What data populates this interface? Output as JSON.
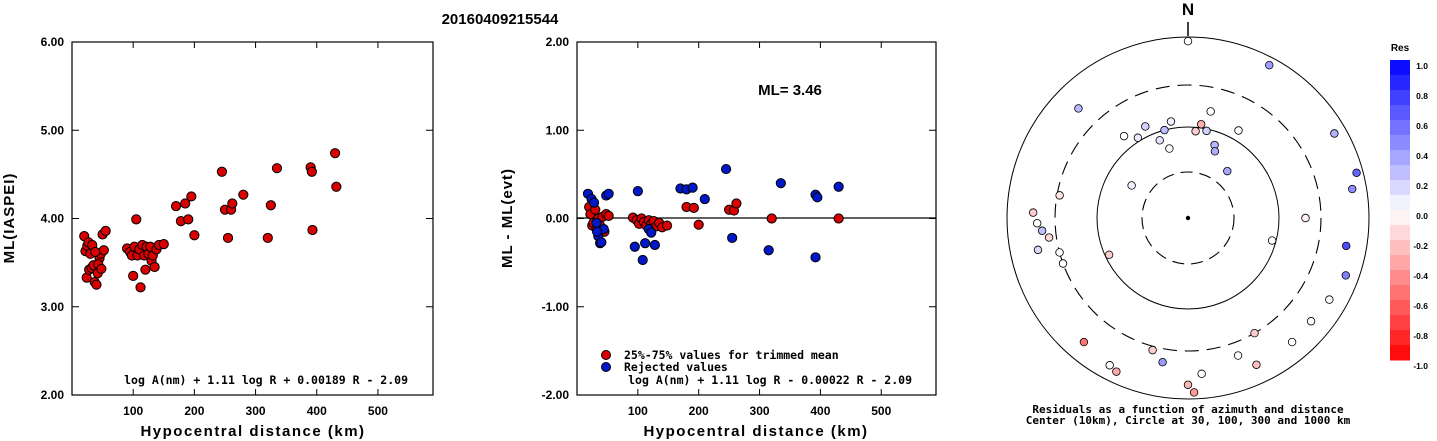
{
  "figure_title": "20160409215544",
  "chart_data": [
    {
      "type": "scatter",
      "name": "left",
      "ylabel": "ML(IASPEI)",
      "xlabel": "Hypocentral distance (km)",
      "xlim": [
        0,
        590
      ],
      "ylim": [
        2.0,
        6.0
      ],
      "x_ticks": [
        "100",
        "200",
        "300",
        "400",
        "500"
      ],
      "y_ticks": [
        "2.00",
        "3.00",
        "4.00",
        "5.00",
        "6.00"
      ],
      "formula": "log A(nm) + 1.11 log R + 0.00189 R - 2.09",
      "color": "#d80000",
      "points": [
        [
          20,
          3.8
        ],
        [
          22,
          3.63
        ],
        [
          25,
          3.69
        ],
        [
          27,
          3.73
        ],
        [
          30,
          3.6
        ],
        [
          24,
          3.33
        ],
        [
          28,
          3.42
        ],
        [
          32,
          3.44
        ],
        [
          35,
          3.47
        ],
        [
          37,
          3.28
        ],
        [
          40,
          3.25
        ],
        [
          42,
          3.38
        ],
        [
          45,
          3.55
        ],
        [
          47,
          3.6
        ],
        [
          50,
          3.82
        ],
        [
          52,
          3.64
        ],
        [
          55,
          3.86
        ],
        [
          33,
          3.7
        ],
        [
          38,
          3.62
        ],
        [
          43,
          3.48
        ],
        [
          48,
          3.43
        ],
        [
          90,
          3.66
        ],
        [
          95,
          3.62
        ],
        [
          98,
          3.58
        ],
        [
          100,
          3.35
        ],
        [
          102,
          3.68
        ],
        [
          105,
          3.99
        ],
        [
          107,
          3.58
        ],
        [
          110,
          3.65
        ],
        [
          112,
          3.22
        ],
        [
          115,
          3.7
        ],
        [
          118,
          3.58
        ],
        [
          120,
          3.42
        ],
        [
          122,
          3.68
        ],
        [
          125,
          3.6
        ],
        [
          128,
          3.68
        ],
        [
          130,
          3.52
        ],
        [
          132,
          3.58
        ],
        [
          135,
          3.45
        ],
        [
          138,
          3.65
        ],
        [
          142,
          3.7
        ],
        [
          150,
          3.71
        ],
        [
          170,
          4.14
        ],
        [
          178,
          3.97
        ],
        [
          185,
          4.17
        ],
        [
          190,
          3.99
        ],
        [
          195,
          4.25
        ],
        [
          200,
          3.81
        ],
        [
          245,
          4.53
        ],
        [
          250,
          4.1
        ],
        [
          255,
          3.78
        ],
        [
          260,
          4.1
        ],
        [
          262,
          4.17
        ],
        [
          280,
          4.27
        ],
        [
          320,
          3.78
        ],
        [
          325,
          4.15
        ],
        [
          335,
          4.57
        ],
        [
          390,
          4.58
        ],
        [
          392,
          4.53
        ],
        [
          393,
          3.87
        ],
        [
          430,
          4.74
        ],
        [
          432,
          4.36
        ]
      ]
    },
    {
      "type": "scatter",
      "name": "middle",
      "ylabel": "ML - ML(evt)",
      "xlabel": "Hypocentral distance (km)",
      "xlim": [
        0,
        590
      ],
      "ylim": [
        -2.0,
        2.0
      ],
      "x_ticks": [
        "100",
        "200",
        "300",
        "400",
        "500"
      ],
      "y_ticks": [
        "-2.00",
        "-1.00",
        "0.00",
        "1.00",
        "2.00"
      ],
      "formula": "log A(nm) + 1.11 log R - 0.00022 R - 2.09",
      "ml_label": "ML= 3.46",
      "legend": [
        "25%-75% values for trimmed mean",
        "Rejected values"
      ],
      "legend_colors": [
        "#d80000",
        "#0018c8"
      ],
      "series": [
        {
          "name": "25%-75% values for trimmed mean",
          "color": "#d80000",
          "points": [
            [
              20,
              0.13
            ],
            [
              22,
              0.05
            ],
            [
              25,
              -0.08
            ],
            [
              27,
              -0.05
            ],
            [
              30,
              0.1
            ],
            [
              32,
              -0.12
            ],
            [
              35,
              0.0
            ],
            [
              38,
              -0.08
            ],
            [
              42,
              0.02
            ],
            [
              45,
              -0.15
            ],
            [
              48,
              0.05
            ],
            [
              52,
              0.03
            ],
            [
              92,
              0.01
            ],
            [
              98,
              -0.02
            ],
            [
              102,
              -0.06
            ],
            [
              106,
              0.0
            ],
            [
              110,
              -0.04
            ],
            [
              114,
              -0.08
            ],
            [
              118,
              -0.02
            ],
            [
              122,
              -0.06
            ],
            [
              126,
              -0.03
            ],
            [
              130,
              -0.09
            ],
            [
              135,
              -0.05
            ],
            [
              140,
              -0.1
            ],
            [
              148,
              -0.08
            ],
            [
              180,
              0.13
            ],
            [
              192,
              0.12
            ],
            [
              200,
              -0.07
            ],
            [
              250,
              0.1
            ],
            [
              258,
              0.09
            ],
            [
              262,
              0.17
            ],
            [
              320,
              0.0
            ],
            [
              430,
              0.0
            ]
          ]
        },
        {
          "name": "Rejected values",
          "color": "#0018c8",
          "points": [
            [
              18,
              0.28
            ],
            [
              24,
              0.22
            ],
            [
              28,
              0.18
            ],
            [
              32,
              -0.05
            ],
            [
              35,
              -0.2
            ],
            [
              38,
              -0.28
            ],
            [
              40,
              -0.27
            ],
            [
              44,
              -0.12
            ],
            [
              48,
              0.26
            ],
            [
              52,
              0.28
            ],
            [
              33,
              -0.15
            ],
            [
              95,
              -0.32
            ],
            [
              100,
              0.31
            ],
            [
              108,
              -0.47
            ],
            [
              112,
              -0.28
            ],
            [
              118,
              -0.12
            ],
            [
              122,
              -0.16
            ],
            [
              128,
              -0.3
            ],
            [
              170,
              0.34
            ],
            [
              180,
              0.33
            ],
            [
              190,
              0.35
            ],
            [
              210,
              0.22
            ],
            [
              245,
              0.56
            ],
            [
              255,
              -0.22
            ],
            [
              315,
              -0.36
            ],
            [
              335,
              0.4
            ],
            [
              392,
              0.27
            ],
            [
              395,
              0.24
            ],
            [
              392,
              -0.44
            ],
            [
              430,
              0.36
            ]
          ]
        }
      ]
    },
    {
      "type": "polar_scatter",
      "name": "right",
      "north_label": "N",
      "caption_line1": "Residuals as a function of azimuth and distance",
      "caption_line2": "Center (10km), Circle at 30, 100, 300 and 1000 km",
      "colorbar": {
        "title": "Res",
        "labels": [
          "1.0",
          "0.8",
          "0.6",
          "0.4",
          "0.2",
          "0.0",
          "-0.2",
          "-0.4",
          "-0.6",
          "-0.8",
          "-1.0"
        ],
        "max_color": "#0000ff",
        "zero_color": "#ffffff",
        "min_color": "#ff0000"
      },
      "points": [
        {
          "az": 0,
          "d": 900,
          "res": 0.0
        },
        {
          "az": 28,
          "d": 820,
          "res": 0.38
        },
        {
          "az": 350,
          "d": 120,
          "res": 0.06
        },
        {
          "az": 345,
          "d": 100,
          "res": 0.26
        },
        {
          "az": 5,
          "d": 90,
          "res": -0.2
        },
        {
          "az": 8,
          "d": 110,
          "res": -0.32
        },
        {
          "az": 340,
          "d": 80,
          "res": 0.12
        },
        {
          "az": 12,
          "d": 95,
          "res": 0.18
        },
        {
          "az": 20,
          "d": 70,
          "res": 0.28
        },
        {
          "az": 335,
          "d": 130,
          "res": 0.18
        },
        {
          "az": 328,
          "d": 110,
          "res": 0.08
        },
        {
          "az": 322,
          "d": 140,
          "res": 0.0
        },
        {
          "az": 315,
          "d": 520,
          "res": 0.28
        },
        {
          "az": 40,
          "d": 45,
          "res": 0.35
        },
        {
          "az": 345,
          "d": 60,
          "res": 0.0
        },
        {
          "az": 300,
          "d": 50,
          "res": 0.05
        },
        {
          "az": 90,
          "d": 200,
          "res": -0.05
        },
        {
          "az": 105,
          "d": 90,
          "res": 0.0
        },
        {
          "az": 60,
          "d": 740,
          "res": 0.3
        },
        {
          "az": 75,
          "d": 850,
          "res": 0.6
        },
        {
          "az": 80,
          "d": 700,
          "res": 0.45
        },
        {
          "az": 100,
          "d": 600,
          "res": 0.7
        },
        {
          "az": 110,
          "d": 720,
          "res": 0.5
        },
        {
          "az": 120,
          "d": 640,
          "res": 0.0
        },
        {
          "az": 130,
          "d": 600,
          "res": 0.0
        },
        {
          "az": 140,
          "d": 620,
          "res": 0.0
        },
        {
          "az": 150,
          "d": 300,
          "res": -0.2
        },
        {
          "az": 155,
          "d": 620,
          "res": -0.25
        },
        {
          "az": 160,
          "d": 420,
          "res": 0.0
        },
        {
          "az": 175,
          "d": 540,
          "res": 0.0
        },
        {
          "az": 178,
          "d": 850,
          "res": -0.4
        },
        {
          "az": 180,
          "d": 700,
          "res": -0.28
        },
        {
          "az": 190,
          "d": 420,
          "res": 0.4
        },
        {
          "az": 195,
          "d": 330,
          "res": -0.2
        },
        {
          "az": 205,
          "d": 750,
          "res": -0.35
        },
        {
          "az": 208,
          "d": 700,
          "res": 0.0
        },
        {
          "az": 220,
          "d": 620,
          "res": -0.55
        },
        {
          "az": 245,
          "d": 90,
          "res": -0.2
        },
        {
          "az": 255,
          "d": 300,
          "res": 0.0
        },
        {
          "az": 262,
          "d": 360,
          "res": -0.15
        },
        {
          "az": 265,
          "d": 420,
          "res": 0.25
        },
        {
          "az": 268,
          "d": 470,
          "res": 0.0
        },
        {
          "az": 272,
          "d": 520,
          "res": -0.2
        },
        {
          "az": 258,
          "d": 500,
          "res": 0.15
        },
        {
          "az": 250,
          "d": 300,
          "res": 0.0
        },
        {
          "az": 280,
          "d": 280,
          "res": -0.1
        },
        {
          "az": 12,
          "d": 160,
          "res": 0.0
        },
        {
          "az": 30,
          "d": 130,
          "res": 0.0
        },
        {
          "az": 22,
          "d": 60,
          "res": 0.32
        }
      ]
    }
  ]
}
